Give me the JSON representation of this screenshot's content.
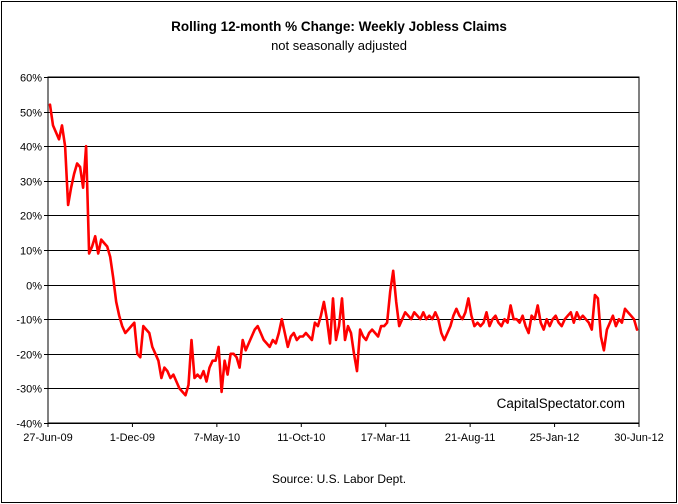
{
  "chart_data": {
    "type": "line",
    "title": "Rolling 12-month %  Change: Weekly Jobless Claims",
    "subtitle": "not seasonally adjusted",
    "source": "Source: U.S. Labor Dept.",
    "watermark": "CapitalSpectator.com",
    "xlabel": "",
    "ylabel": "",
    "ylim": [
      -40,
      60
    ],
    "y_tick_labels": [
      "60%",
      "50%",
      "40%",
      "30%",
      "20%",
      "10%",
      "0%",
      "-10%",
      "-20%",
      "-30%",
      "-40%"
    ],
    "x_tick_labels": [
      "27-Jun-09",
      "1-Dec-09",
      "7-May-10",
      "11-Oct-10",
      "17-Mar-11",
      "21-Aug-11",
      "25-Jan-12",
      "30-Jun-12"
    ],
    "grid": "horizontal",
    "line_color": "#ff0000",
    "x_start": "2009-06-27",
    "x_step_days": 7,
    "series": [
      {
        "values": [
          52,
          46,
          44,
          42,
          46,
          40,
          23,
          28,
          32,
          35,
          34,
          28,
          40,
          9,
          11,
          14,
          9,
          13,
          12,
          11,
          8,
          2,
          -5,
          -9,
          -12,
          -14,
          -13,
          -12,
          -11,
          -20,
          -21,
          -12,
          -13,
          -14,
          -18,
          -20,
          -22,
          -27,
          -24,
          -25,
          -27,
          -26,
          -28,
          -30,
          -31,
          -32,
          -29,
          -16,
          -27,
          -26,
          -27,
          -25,
          -28,
          -24,
          -22,
          -22,
          -18,
          -31,
          -22,
          -26,
          -20,
          -20,
          -21,
          -24,
          -16,
          -19,
          -17,
          -15,
          -13,
          -12,
          -14,
          -16,
          -17,
          -18,
          -16,
          -17,
          -14,
          -10,
          -14,
          -18,
          -15,
          -14,
          -16,
          -15,
          -15,
          -14,
          -15,
          -16,
          -11,
          -12,
          -9,
          -5,
          -10,
          -17,
          -4,
          -16,
          -12,
          -4,
          -16,
          -12,
          -14,
          -20,
          -25,
          -13,
          -15,
          -16,
          -14,
          -13,
          -14,
          -15,
          -12,
          -12,
          -11,
          -2,
          4,
          -5,
          -12,
          -10,
          -8,
          -9,
          -10,
          -8,
          -9,
          -10,
          -8,
          -10,
          -9,
          -10,
          -8,
          -10,
          -14,
          -16,
          -14,
          -12,
          -9,
          -7,
          -9,
          -10,
          -8,
          -4,
          -9,
          -12,
          -11,
          -12,
          -11,
          -8,
          -12,
          -10,
          -9,
          -11,
          -12,
          -10,
          -11,
          -6,
          -10,
          -10,
          -11,
          -9,
          -12,
          -14,
          -9,
          -10,
          -6,
          -11,
          -13,
          -10,
          -12,
          -10,
          -9,
          -11,
          -12,
          -10,
          -9,
          -8,
          -11,
          -8,
          -10,
          -9,
          -10,
          -11,
          -13,
          -3,
          -4,
          -15,
          -19,
          -13,
          -11,
          -9,
          -12,
          -10,
          -11,
          -7,
          -8,
          -9,
          -10,
          -13
        ]
      }
    ]
  }
}
